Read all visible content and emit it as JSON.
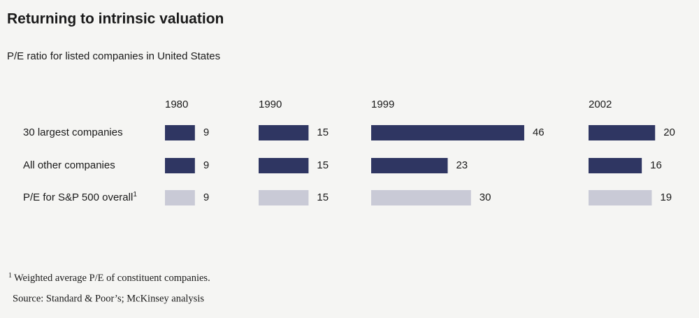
{
  "chart_data": {
    "type": "bar",
    "orientation": "horizontal",
    "title": "Returning to intrinsic valuation",
    "subtitle": "P/E ratio for listed companies in United States",
    "categories": [
      "30 largest companies",
      "All other companies",
      "P/E for S&P 500 overall"
    ],
    "category_colors": [
      "#2f3662",
      "#2f3662",
      "#c9cad6"
    ],
    "series": [
      {
        "name": "1980",
        "values": [
          9,
          9,
          9
        ]
      },
      {
        "name": "1990",
        "values": [
          15,
          15,
          15
        ]
      },
      {
        "name": "1999",
        "values": [
          46,
          23,
          30
        ]
      },
      {
        "name": "2002",
        "values": [
          20,
          16,
          19
        ]
      }
    ],
    "footnote": {
      "marker": "1",
      "text": "Weighted average P/E of constituent companies."
    },
    "source": "Source: Standard & Poor’s; McKinsey analysis"
  }
}
